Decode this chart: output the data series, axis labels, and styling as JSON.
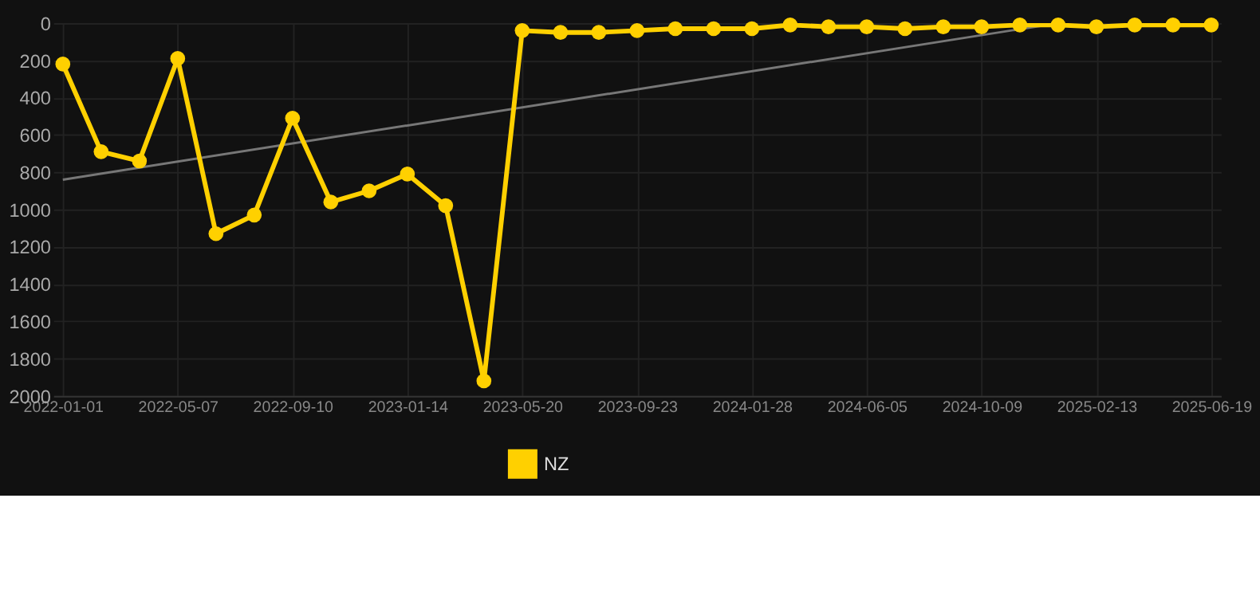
{
  "chart_data": {
    "type": "line",
    "categories": [
      "2022-01-01",
      null,
      null,
      "2022-05-07",
      null,
      null,
      "2022-09-10",
      null,
      null,
      "2023-01-14",
      null,
      null,
      "2023-05-20",
      null,
      null,
      "2023-09-23",
      null,
      null,
      "2024-01-28",
      null,
      null,
      "2024-06-05",
      null,
      null,
      "2024-10-09",
      null,
      null,
      "2025-02-13",
      null,
      null,
      "2025-06-19"
    ],
    "series": [
      {
        "name": "NZ",
        "color": "#ffd000",
        "marker": "circle",
        "values": [
          220,
          690,
          740,
          190,
          1130,
          1030,
          510,
          960,
          900,
          810,
          980,
          1920,
          40,
          50,
          50,
          40,
          30,
          30,
          30,
          10,
          20,
          20,
          30,
          20,
          20,
          10,
          10,
          20,
          10,
          10,
          10
        ]
      },
      {
        "type": "line",
        "color": "#777777",
        "marker": "none",
        "values": [
          840,
          null,
          null,
          null,
          null,
          null,
          null,
          null,
          null,
          null,
          null,
          null,
          null,
          null,
          null,
          null,
          null,
          null,
          null,
          null,
          null,
          null,
          null,
          null,
          null,
          null,
          0,
          null,
          null,
          null,
          null
        ]
      }
    ],
    "ylim": [
      2000,
      0
    ],
    "yticks": [
      0,
      200,
      400,
      600,
      800,
      1000,
      1200,
      1400,
      1600,
      1800,
      2000
    ],
    "grid": true,
    "legend": "bottom"
  }
}
